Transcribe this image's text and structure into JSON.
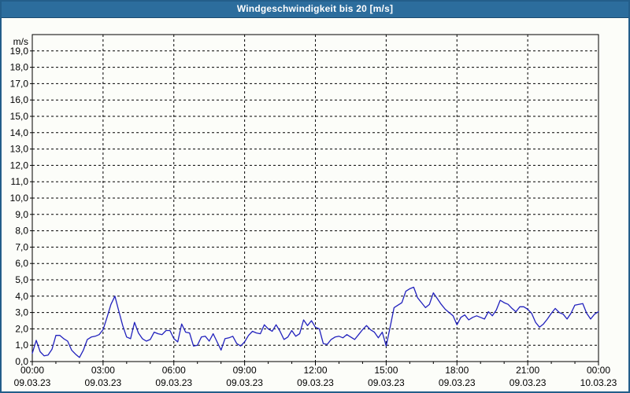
{
  "window": {
    "title": "Windgeschwindigkeit bis 20 [m/s]"
  },
  "colors": {
    "titlebar_bg": "#2c6d9d",
    "titlebar_text": "#ffffff",
    "window_border": "#235e8a",
    "background": "#fcfdf9",
    "plot_border": "#000000",
    "grid": "#000000",
    "label_text": "#000000",
    "series_line": "#2121bd"
  },
  "chart_data": {
    "type": "line",
    "title": "Windgeschwindigkeit bis 20 [m/s]",
    "ylabel": "m/s",
    "xlabel": "",
    "ylim": [
      0,
      20
    ],
    "xlim_hours": [
      0,
      24
    ],
    "grid": "dashed",
    "legend": "none",
    "y_tick_labels": [
      "0,0",
      "1,0",
      "2,0",
      "3,0",
      "4,0",
      "5,0",
      "6,0",
      "7,0",
      "8,0",
      "9,0",
      "10,0",
      "11,0",
      "12,0",
      "13,0",
      "14,0",
      "15,0",
      "16,0",
      "17,0",
      "18,0",
      "19,0"
    ],
    "x_ticks": [
      {
        "hour": 0,
        "time": "00:00",
        "date": "09.03.23"
      },
      {
        "hour": 3,
        "time": "03:00",
        "date": "09.03.23"
      },
      {
        "hour": 6,
        "time": "06:00",
        "date": "09.03.23"
      },
      {
        "hour": 9,
        "time": "09:00",
        "date": "09.03.23"
      },
      {
        "hour": 12,
        "time": "12:00",
        "date": "09.03.23"
      },
      {
        "hour": 15,
        "time": "15:00",
        "date": "09.03.23"
      },
      {
        "hour": 18,
        "time": "18:00",
        "date": "09.03.23"
      },
      {
        "hour": 21,
        "time": "21:00",
        "date": "09.03.23"
      },
      {
        "hour": 24,
        "time": "00:00",
        "date": "10.03.23"
      }
    ],
    "minor_x_tick_every_hours": 1,
    "series": [
      {
        "name": "Windgeschwindigkeit",
        "unit": "m/s",
        "interval_minutes": 10,
        "start": "09.03.23 00:00",
        "values": [
          0.5,
          1.3,
          0.6,
          0.35,
          0.4,
          0.75,
          1.6,
          1.6,
          1.4,
          1.25,
          0.7,
          0.45,
          0.25,
          0.7,
          1.35,
          1.5,
          1.55,
          1.65,
          1.95,
          2.7,
          3.5,
          4.0,
          3.1,
          2.2,
          1.5,
          1.4,
          2.4,
          1.75,
          1.4,
          1.25,
          1.35,
          1.8,
          1.7,
          1.65,
          1.9,
          1.9,
          1.4,
          1.2,
          2.3,
          1.8,
          1.75,
          0.95,
          1.0,
          1.5,
          1.55,
          1.25,
          1.7,
          1.2,
          0.7,
          1.4,
          1.45,
          1.55,
          1.1,
          0.95,
          1.2,
          1.6,
          1.85,
          1.75,
          1.7,
          2.25,
          2.0,
          1.85,
          2.25,
          1.85,
          1.35,
          1.5,
          1.9,
          1.55,
          1.7,
          2.55,
          2.2,
          2.5,
          2.1,
          2.0,
          1.1,
          1.05,
          1.35,
          1.5,
          1.55,
          1.45,
          1.65,
          1.5,
          1.35,
          1.65,
          1.95,
          2.2,
          1.95,
          1.8,
          1.45,
          1.8,
          0.95,
          2.1,
          3.3,
          3.45,
          3.6,
          4.3,
          4.45,
          4.55,
          3.9,
          3.6,
          3.3,
          3.5,
          4.2,
          3.85,
          3.5,
          3.2,
          3.0,
          2.8,
          2.25,
          2.7,
          2.85,
          2.55,
          2.7,
          2.8,
          2.7,
          2.6,
          3.05,
          2.8,
          3.15,
          3.75,
          3.6,
          3.5,
          3.25,
          3.05,
          3.35,
          3.35,
          3.2,
          2.95,
          2.4,
          2.1,
          2.3,
          2.6,
          2.95,
          3.25,
          3.0,
          2.9,
          2.6,
          2.95,
          3.45,
          3.5,
          3.55,
          2.95,
          2.6,
          2.9,
          3.05
        ]
      }
    ]
  }
}
